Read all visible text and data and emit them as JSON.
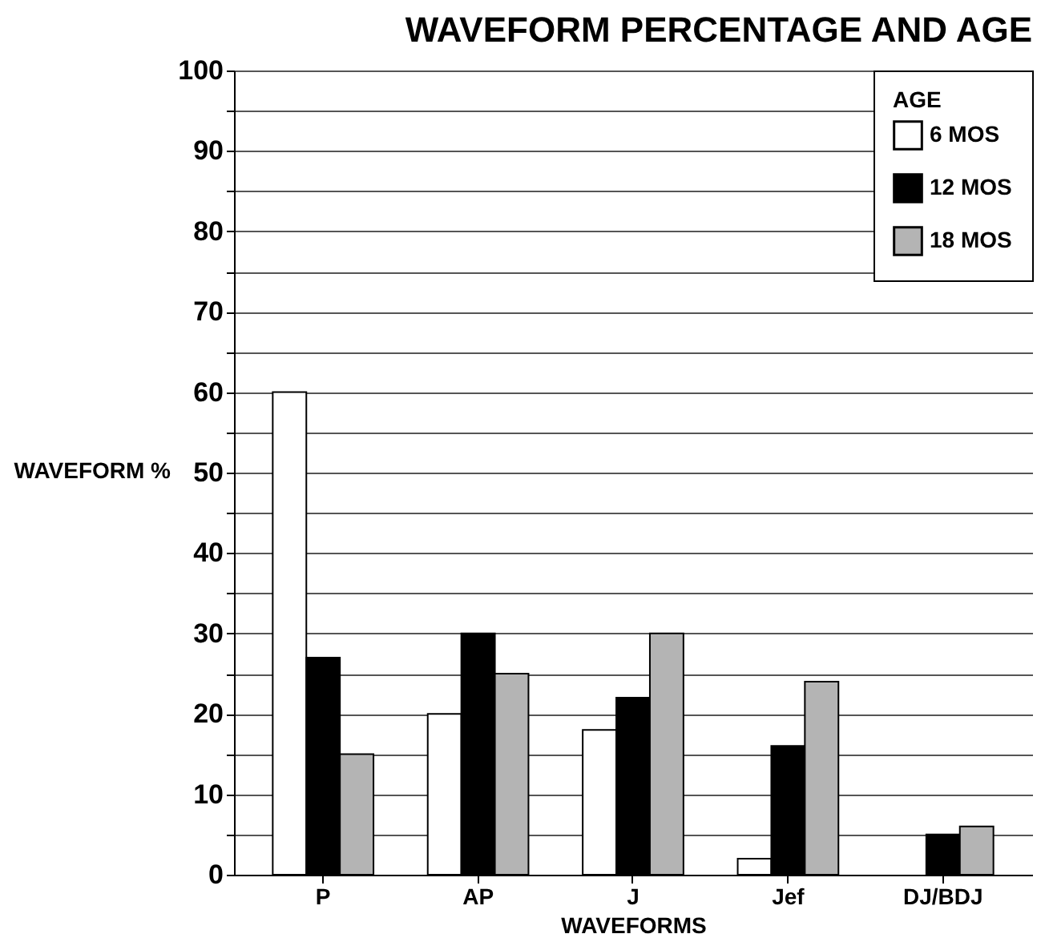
{
  "chart_data": {
    "type": "bar",
    "title": "WAVEFORM PERCENTAGE AND AGE",
    "xlabel": "WAVEFORMS",
    "ylabel": "WAVEFORM %",
    "legend_title": "AGE",
    "categories": [
      "P",
      "AP",
      "J",
      "Jef",
      "DJ/BDJ"
    ],
    "series": [
      {
        "name": "6 MOS",
        "color": "#ffffff",
        "values": [
          60,
          20,
          18,
          2,
          null
        ]
      },
      {
        "name": "12 MOS",
        "color": "#000000",
        "values": [
          27,
          30,
          22,
          16,
          5
        ]
      },
      {
        "name": "18 MOS",
        "color": "#b4b4b4",
        "values": [
          15,
          25,
          30,
          24,
          6
        ]
      }
    ],
    "ylim": [
      0,
      100
    ],
    "yticks": [
      0,
      {
        "value": 5,
        "label": null
      },
      10,
      {
        "value": 15,
        "label": null
      },
      20,
      {
        "value": 25,
        "label": null
      },
      30,
      {
        "value": 35,
        "label": null
      },
      40,
      {
        "value": 45,
        "label": null
      },
      50,
      {
        "value": 55,
        "label": null
      },
      60,
      {
        "value": 65,
        "label": null
      },
      70,
      {
        "value": 75,
        "label": null
      },
      80,
      {
        "value": 85,
        "label": null
      },
      90,
      {
        "value": 95,
        "label": null
      },
      100
    ],
    "grid": "y",
    "legend": "top right"
  }
}
